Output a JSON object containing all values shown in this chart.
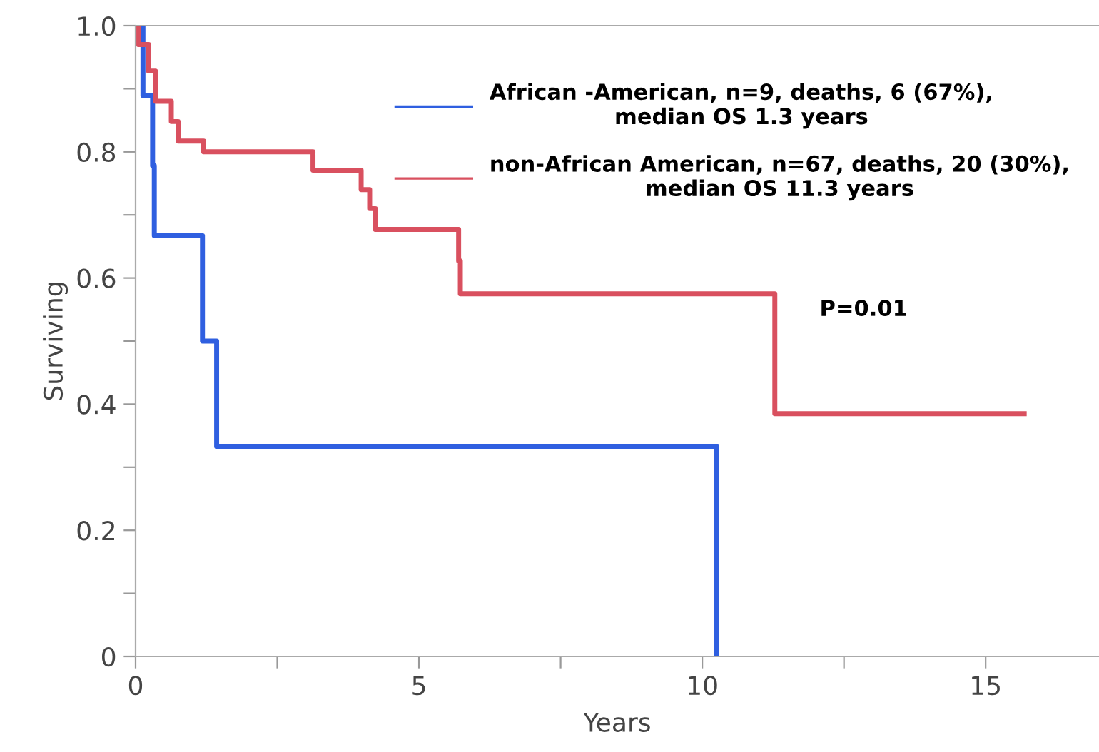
{
  "chart_data": {
    "type": "step",
    "xlabel": "Years",
    "ylabel": "Surviving",
    "xlim": [
      0,
      17
    ],
    "xticks": [
      0,
      {
        "value": 2.5,
        "label": null
      },
      5,
      {
        "value": 7.5,
        "label": null
      },
      10,
      {
        "value": 12.5,
        "label": null
      },
      15
    ],
    "ylim": [
      0,
      1.0
    ],
    "yticks": [
      0,
      {
        "value": 0.1,
        "label": null
      },
      0.2,
      {
        "value": 0.3,
        "label": null
      },
      0.4,
      {
        "value": 0.5,
        "label": null
      },
      0.6,
      {
        "value": 0.7,
        "label": null
      },
      0.8,
      {
        "value": 0.9,
        "label": null
      },
      {
        "value": 1.0,
        "label": "1.0"
      }
    ],
    "series": [
      {
        "name": "African -American, n=9, deaths, 6 (67%),\nmedian OS 1.3 years",
        "color": "#2f5fe0",
        "x": [
          0,
          0.13,
          0.3,
          0.33,
          1.18,
          1.43,
          10.25
        ],
        "values": [
          1,
          0.889,
          0.778,
          0.667,
          0.5,
          0.333,
          0
        ]
      },
      {
        "name": "non-African American, n=67, deaths, 20 (30%),\nmedian OS 11.3 years",
        "color": "#d9505f",
        "x": [
          0,
          0.05,
          0.23,
          0.35,
          0.63,
          0.75,
          1.2,
          3.13,
          3.98,
          4.13,
          4.23,
          5.7,
          5.73,
          11.28,
          15.68
        ],
        "values": [
          1,
          0.97,
          0.928,
          0.88,
          0.848,
          0.817,
          0.8,
          0.771,
          0.74,
          0.71,
          0.677,
          0.627,
          0.575,
          0.385,
          0.385
        ]
      }
    ],
    "annotations": [
      "P=0.01"
    ],
    "legend": "top right",
    "grid": false
  }
}
